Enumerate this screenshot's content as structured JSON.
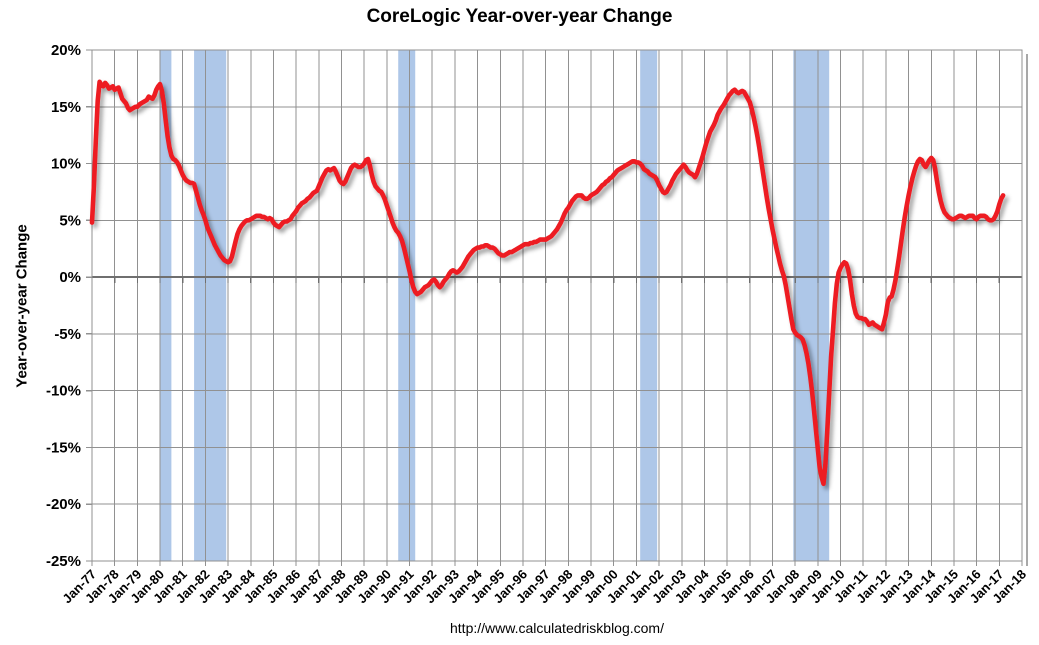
{
  "chart_data": {
    "type": "line",
    "title": "CoreLogic Year-over-year Change",
    "ylabel": "Year-over-year Change",
    "source_url": "http://www.calculatedriskblog.com/",
    "xlim": [
      1977,
      2018
    ],
    "ylim": [
      -25,
      20
    ],
    "grid": true,
    "x_tick_labels": [
      "Jan-77",
      "Jan-78",
      "Jan-79",
      "Jan-80",
      "Jan-81",
      "Jan-82",
      "Jan-83",
      "Jan-84",
      "Jan-85",
      "Jan-86",
      "Jan-87",
      "Jan-88",
      "Jan-89",
      "Jan-90",
      "Jan-91",
      "Jan-92",
      "Jan-93",
      "Jan-94",
      "Jan-95",
      "Jan-96",
      "Jan-97",
      "Jan-98",
      "Jan-99",
      "Jan-00",
      "Jan-01",
      "Jan-02",
      "Jan-03",
      "Jan-04",
      "Jan-05",
      "Jan-06",
      "Jan-07",
      "Jan-08",
      "Jan-09",
      "Jan-10",
      "Jan-11",
      "Jan-12",
      "Jan-13",
      "Jan-14",
      "Jan-15",
      "Jan-16",
      "Jan-17",
      "Jan-18"
    ],
    "y_ticks": [
      {
        "label": "20%",
        "value": 20
      },
      {
        "label": "15%",
        "value": 15
      },
      {
        "label": "10%",
        "value": 10
      },
      {
        "label": "5%",
        "value": 5
      },
      {
        "label": "0%",
        "value": 0
      },
      {
        "label": "-5%",
        "value": -5
      },
      {
        "label": "-10%",
        "value": -10
      },
      {
        "label": "-15%",
        "value": -15
      },
      {
        "label": "-20%",
        "value": -20
      },
      {
        "label": "-25%",
        "value": -25
      }
    ],
    "recession_bands": [
      {
        "start": 1980.0,
        "end": 1980.5
      },
      {
        "start": 1981.5,
        "end": 1982.917
      },
      {
        "start": 1990.5,
        "end": 1991.25
      },
      {
        "start": 2001.167,
        "end": 2001.917
      },
      {
        "start": 2007.917,
        "end": 2009.5
      }
    ],
    "series": [
      {
        "name": "CoreLogic House Price Index year-over-year change",
        "frequency": "monthly",
        "start_year": 1977,
        "values_by_year": {
          "1977": [
            4.8,
            8.0,
            12.0,
            15.5,
            17.2,
            16.9,
            16.8,
            17.1,
            16.9,
            16.6,
            16.7,
            16.8
          ],
          "1978": [
            16.5,
            16.6,
            16.7,
            16.2,
            15.7,
            15.5,
            15.3,
            14.9,
            14.7,
            14.8,
            14.9,
            15.0
          ],
          "1979": [
            15.0,
            15.2,
            15.3,
            15.4,
            15.5,
            15.6,
            15.9,
            15.8,
            15.7,
            16.0,
            16.5,
            16.8
          ],
          "1980": [
            17.0,
            16.4,
            15.3,
            13.8,
            12.4,
            11.4,
            10.7,
            10.4,
            10.3,
            10.1,
            9.8,
            9.4
          ],
          "1981": [
            9.0,
            8.7,
            8.5,
            8.4,
            8.3,
            8.3,
            8.2,
            7.6,
            7.0,
            6.4,
            5.9,
            5.5
          ],
          "1982": [
            5.0,
            4.4,
            4.0,
            3.6,
            3.2,
            2.8,
            2.5,
            2.2,
            1.9,
            1.7,
            1.5,
            1.4
          ],
          "1983": [
            1.3,
            1.4,
            1.8,
            2.5,
            3.2,
            3.8,
            4.2,
            4.5,
            4.7,
            4.9,
            5.0,
            5.0
          ],
          "1984": [
            5.1,
            5.2,
            5.3,
            5.4,
            5.4,
            5.4,
            5.3,
            5.3,
            5.2,
            5.1,
            5.2,
            5.1
          ],
          "1985": [
            4.8,
            4.6,
            4.5,
            4.4,
            4.6,
            4.8,
            4.9,
            4.9,
            5.0,
            5.1,
            5.4,
            5.6
          ],
          "1986": [
            5.8,
            6.1,
            6.3,
            6.5,
            6.6,
            6.7,
            6.9,
            7.0,
            7.2,
            7.4,
            7.5,
            7.6
          ],
          "1987": [
            8.0,
            8.4,
            8.8,
            9.1,
            9.4,
            9.5,
            9.4,
            9.5,
            9.6,
            9.3,
            8.9,
            8.5
          ],
          "1988": [
            8.3,
            8.2,
            8.4,
            8.8,
            9.2,
            9.6,
            9.8,
            9.9,
            9.8,
            9.7,
            9.7,
            9.8
          ],
          "1989": [
            10.0,
            10.3,
            10.4,
            9.8,
            9.0,
            8.4,
            8.0,
            7.8,
            7.6,
            7.5,
            7.2,
            6.8
          ],
          "1990": [
            6.3,
            5.8,
            5.3,
            4.8,
            4.4,
            4.1,
            3.9,
            3.6,
            3.2,
            2.6,
            1.9,
            1.2
          ],
          "1991": [
            0.5,
            -0.3,
            -0.9,
            -1.3,
            -1.5,
            -1.4,
            -1.3,
            -1.1,
            -0.9,
            -0.8,
            -0.7,
            -0.5
          ],
          "1992": [
            -0.3,
            -0.2,
            -0.4,
            -0.7,
            -0.9,
            -0.7,
            -0.4,
            -0.2,
            0.0,
            0.3,
            0.5,
            0.6
          ],
          "1993": [
            0.5,
            0.4,
            0.5,
            0.7,
            0.9,
            1.2,
            1.5,
            1.8,
            2.0,
            2.2,
            2.4,
            2.5
          ],
          "1994": [
            2.6,
            2.6,
            2.7,
            2.7,
            2.8,
            2.8,
            2.7,
            2.6,
            2.6,
            2.5,
            2.3,
            2.1
          ],
          "1995": [
            2.0,
            1.9,
            1.9,
            2.0,
            2.1,
            2.2,
            2.2,
            2.3,
            2.4,
            2.5,
            2.6,
            2.7
          ],
          "1996": [
            2.8,
            2.9,
            2.9,
            2.9,
            3.0,
            3.0,
            3.1,
            3.1,
            3.2,
            3.3,
            3.3,
            3.3
          ],
          "1997": [
            3.3,
            3.4,
            3.5,
            3.6,
            3.8,
            4.0,
            4.2,
            4.5,
            4.8,
            5.2,
            5.6,
            5.9
          ],
          "1998": [
            6.1,
            6.4,
            6.7,
            6.9,
            7.1,
            7.2,
            7.2,
            7.2,
            7.0,
            6.9,
            6.9,
            7.0
          ],
          "1999": [
            7.2,
            7.3,
            7.4,
            7.5,
            7.7,
            7.9,
            8.1,
            8.2,
            8.4,
            8.5,
            8.7,
            8.8
          ],
          "2000": [
            9.0,
            9.2,
            9.4,
            9.5,
            9.6,
            9.7,
            9.8,
            9.9,
            10.0,
            10.1,
            10.2,
            10.2
          ],
          "2001": [
            10.1,
            10.1,
            10.0,
            9.8,
            9.5,
            9.4,
            9.3,
            9.1,
            9.0,
            8.9,
            8.8,
            8.5
          ],
          "2002": [
            8.1,
            7.8,
            7.5,
            7.4,
            7.5,
            7.8,
            8.1,
            8.5,
            8.8,
            9.1,
            9.3,
            9.5
          ],
          "2003": [
            9.7,
            9.9,
            9.7,
            9.4,
            9.2,
            9.1,
            9.0,
            8.8,
            9.1,
            9.6,
            10.1,
            10.6
          ],
          "2004": [
            11.2,
            11.8,
            12.3,
            12.8,
            13.1,
            13.4,
            13.8,
            14.3,
            14.6,
            14.9,
            15.1,
            15.4
          ],
          "2005": [
            15.7,
            16.0,
            16.2,
            16.4,
            16.5,
            16.3,
            16.2,
            16.3,
            16.4,
            16.3,
            16.0,
            15.7
          ],
          "2006": [
            15.4,
            14.8,
            14.1,
            13.3,
            12.4,
            11.4,
            10.3,
            9.2,
            8.1,
            7.0,
            6.0,
            5.1
          ],
          "2007": [
            4.2,
            3.4,
            2.6,
            1.9,
            1.2,
            0.6,
            0.1,
            -0.7,
            -1.7,
            -2.7,
            -3.7,
            -4.6
          ],
          "2008": [
            -4.9,
            -5.1,
            -5.2,
            -5.3,
            -5.5,
            -6.0,
            -6.7,
            -7.6,
            -8.8,
            -10.2,
            -11.8,
            -13.5
          ],
          "2009": [
            -15.2,
            -16.8,
            -17.6,
            -18.2,
            -16.5,
            -13.5,
            -10.2,
            -7.0,
            -4.7,
            -2.3,
            -0.6,
            0.4
          ],
          "2010": [
            0.8,
            1.1,
            1.3,
            1.2,
            0.7,
            -0.2,
            -1.5,
            -2.5,
            -3.2,
            -3.5,
            -3.6,
            -3.6
          ],
          "2011": [
            -3.7,
            -3.7,
            -3.9,
            -4.2,
            -4.1,
            -4.0,
            -4.2,
            -4.3,
            -4.4,
            -4.5,
            -4.6,
            -4.0
          ],
          "2012": [
            -3.3,
            -2.2,
            -1.8,
            -1.7,
            -1.1,
            -0.3,
            0.7,
            1.8,
            3.0,
            4.2,
            5.3,
            6.3
          ],
          "2013": [
            7.2,
            8.0,
            8.7,
            9.3,
            9.8,
            10.2,
            10.4,
            10.3,
            9.9,
            9.7,
            10.0,
            10.3
          ],
          "2014": [
            10.5,
            10.3,
            9.6,
            8.5,
            7.5,
            6.7,
            6.1,
            5.7,
            5.5,
            5.3,
            5.2,
            5.1
          ],
          "2015": [
            5.1,
            5.2,
            5.3,
            5.4,
            5.4,
            5.3,
            5.2,
            5.3,
            5.4,
            5.4,
            5.4,
            5.2
          ],
          "2016": [
            5.1,
            5.3,
            5.4,
            5.4,
            5.4,
            5.3,
            5.1,
            5.0,
            5.0,
            5.1,
            5.4,
            5.8
          ],
          "2017": [
            6.4,
            6.9,
            7.2
          ]
        }
      }
    ],
    "colors": {
      "line": "#ed1c24",
      "recession_band": "#aec7e8",
      "gridline": "#919191",
      "zero_axis": "#6f6f6f",
      "plot_shadow": "#a8a8a8",
      "text": "#000000",
      "background": "#ffffff"
    }
  }
}
